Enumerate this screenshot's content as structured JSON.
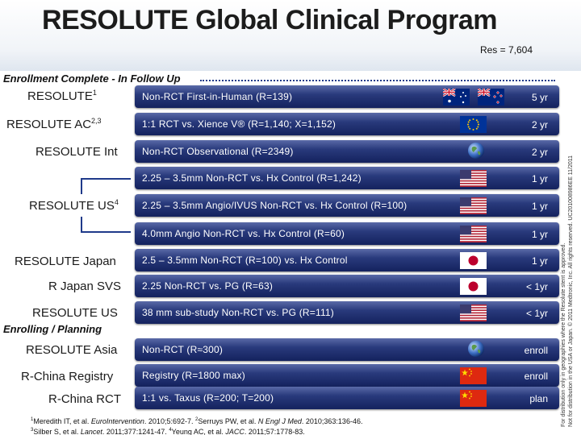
{
  "header": {
    "title": "RESOLUTE Global Clinical Program",
    "res": "Res = 7,604"
  },
  "sections": {
    "complete": "Enrollment Complete - In Follow Up",
    "planning": "Enrolling / Planning"
  },
  "colors": {
    "bar": "#293a7c",
    "accent": "#1f3a8a"
  },
  "rows": [
    {
      "name": "RESOLUTE",
      "sup": "1",
      "bar": "Non-RCT First-in-Human (R=139)",
      "dur": "5 yr",
      "flags": [
        "au-flag",
        "nz-flag"
      ]
    },
    {
      "name": "RESOLUTE AC",
      "sup": "2,3",
      "bar": "1:1 RCT vs. Xience V® (R=1,140; X=1,152)",
      "dur": "2 yr",
      "flags": [
        "eu-flag"
      ]
    },
    {
      "name": "RESOLUTE Int",
      "sup": "",
      "bar": "Non-RCT Observational (R=2349)",
      "dur": "2 yr",
      "flags": [
        "globe-icon"
      ]
    },
    {
      "name": "",
      "sup": "",
      "bar": "2.25 – 3.5mm Non-RCT vs. Hx Control (R=1,242)",
      "dur": "1 yr",
      "flags": [
        "us-flag"
      ]
    },
    {
      "name": "RESOLUTE US",
      "sup": "4",
      "bar": "2.25 – 3.5mm Angio/IVUS Non-RCT vs. Hx Control (R=100)",
      "dur": "1 yr",
      "flags": [
        "us-flag"
      ]
    },
    {
      "name": "",
      "sup": "",
      "bar": "4.0mm Angio Non-RCT vs. Hx Control (R=60)",
      "dur": "1 yr",
      "flags": [
        "us-flag"
      ]
    },
    {
      "name": "RESOLUTE Japan",
      "sup": "",
      "bar": "2.5 – 3.5mm Non-RCT (R=100) vs. Hx Control",
      "dur": "1 yr",
      "flags": [
        "jp-flag"
      ]
    },
    {
      "name": "R Japan SVS",
      "sup": "",
      "bar": "2.25 Non-RCT vs. PG (R=63)",
      "dur": "< 1yr",
      "flags": [
        "jp-flag"
      ]
    },
    {
      "name": "RESOLUTE US",
      "sup": "",
      "bar": "38 mm sub-study Non-RCT vs. PG (R=111)",
      "dur": "< 1yr",
      "flags": [
        "us-flag"
      ]
    },
    {
      "name": "RESOLUTE Asia",
      "sup": "",
      "bar": "Non-RCT (R≈300)",
      "dur": "enroll",
      "flags": [
        "globe-icon"
      ]
    },
    {
      "name": "R-China Registry",
      "sup": "",
      "bar": "Registry (R=1800 max)",
      "dur": "enroll",
      "flags": [
        "cn-flag"
      ]
    },
    {
      "name": "R-China RCT",
      "sup": "",
      "bar": "1:1 vs. Taxus (R=200; T=200)",
      "dur": "plan",
      "flags": [
        "cn-flag"
      ]
    }
  ],
  "refs": {
    "line1_a": "Meredith IT, et al. ",
    "line1_b": "EuroIntervention",
    "line1_c": ". 2010;5:692-7. ",
    "line1_d": "Serruys PW, et al. ",
    "line1_e": "N Engl J Med",
    "line1_f": ". 2010;363:136-46.",
    "line2_a": "Silber S, et al. ",
    "line2_b": "Lancet",
    "line2_c": ". 2011;377:1241-47. ",
    "line2_d": "Yeung AC, et al. ",
    "line2_e": "JACC",
    "line2_f": ". 2011;57:1778-83.",
    "sup1": "1",
    "sup2": "2",
    "sup3": "3",
    "sup4": "4"
  },
  "side_note": {
    "line1": "For distribution only in geographies where the Resolute stent is approved.",
    "line2": "Not for distribution in the USA or Japan. © 2011 Medtronic, Inc. All rights reserved. UC201008986EE 11/2011"
  }
}
